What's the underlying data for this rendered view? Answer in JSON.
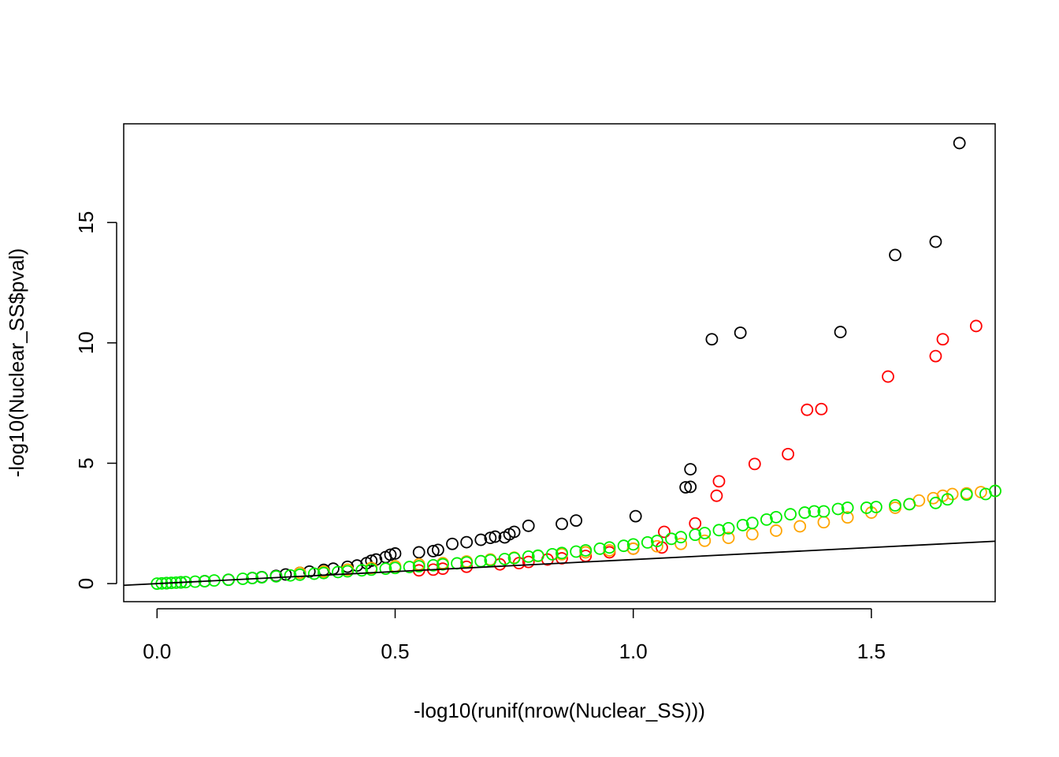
{
  "chart_data": {
    "type": "scatter",
    "title": "",
    "xlabel": "-log10(runif(nrow(Nuclear_SS)))",
    "ylabel": "-log10(Nuclear_SS$pval)",
    "xlim": [
      -0.07,
      1.76
    ],
    "ylim": [
      -0.75,
      19.1
    ],
    "x_ticks": [
      0.0,
      0.5,
      1.0,
      1.5
    ],
    "x_tick_labels": [
      "0.0",
      "0.5",
      "1.0",
      "1.5"
    ],
    "y_ticks": [
      0,
      5,
      10,
      15
    ],
    "y_tick_labels": [
      "0",
      "5",
      "10",
      "15"
    ],
    "grid": false,
    "reference_line": {
      "intercept": 0,
      "slope": 1,
      "color": "#000000"
    },
    "series": [
      {
        "color": "#000000",
        "points": [
          [
            0.02,
            0.02
          ],
          [
            0.05,
            0.05
          ],
          [
            0.1,
            0.1
          ],
          [
            0.15,
            0.16
          ],
          [
            0.2,
            0.23
          ],
          [
            0.22,
            0.27
          ],
          [
            0.25,
            0.32
          ],
          [
            0.27,
            0.38
          ],
          [
            0.3,
            0.45
          ],
          [
            0.32,
            0.5
          ],
          [
            0.35,
            0.57
          ],
          [
            0.37,
            0.62
          ],
          [
            0.4,
            0.7
          ],
          [
            0.42,
            0.75
          ],
          [
            0.44,
            0.85
          ],
          [
            0.45,
            0.95
          ],
          [
            0.46,
            1.0
          ],
          [
            0.48,
            1.1
          ],
          [
            0.49,
            1.2
          ],
          [
            0.5,
            1.25
          ],
          [
            0.55,
            1.3
          ],
          [
            0.58,
            1.35
          ],
          [
            0.59,
            1.4
          ],
          [
            0.62,
            1.65
          ],
          [
            0.65,
            1.72
          ],
          [
            0.68,
            1.82
          ],
          [
            0.7,
            1.9
          ],
          [
            0.71,
            1.95
          ],
          [
            0.73,
            1.92
          ],
          [
            0.74,
            2.05
          ],
          [
            0.75,
            2.15
          ],
          [
            0.78,
            2.4
          ],
          [
            0.85,
            2.48
          ],
          [
            0.88,
            2.62
          ],
          [
            1.005,
            2.8
          ],
          [
            1.11,
            4.0
          ],
          [
            1.12,
            4.02
          ],
          [
            1.12,
            4.75
          ],
          [
            1.165,
            10.15
          ],
          [
            1.225,
            10.42
          ],
          [
            1.435,
            10.45
          ],
          [
            1.55,
            13.65
          ],
          [
            1.635,
            14.2
          ],
          [
            1.685,
            18.3
          ]
        ]
      },
      {
        "color": "#ff0000",
        "points": [
          [
            0.55,
            0.55
          ],
          [
            0.58,
            0.58
          ],
          [
            0.6,
            0.62
          ],
          [
            0.65,
            0.7
          ],
          [
            0.72,
            0.8
          ],
          [
            0.76,
            0.85
          ],
          [
            0.78,
            0.9
          ],
          [
            0.82,
            1.0
          ],
          [
            0.85,
            1.05
          ],
          [
            0.9,
            1.15
          ],
          [
            0.95,
            1.3
          ],
          [
            1.0,
            1.45
          ],
          [
            1.06,
            1.5
          ],
          [
            1.065,
            2.15
          ],
          [
            1.13,
            2.5
          ],
          [
            1.175,
            3.65
          ],
          [
            1.18,
            4.25
          ],
          [
            1.255,
            4.97
          ],
          [
            1.325,
            5.38
          ],
          [
            1.365,
            7.22
          ],
          [
            1.395,
            7.25
          ],
          [
            1.535,
            8.6
          ],
          [
            1.635,
            9.45
          ],
          [
            1.65,
            10.15
          ],
          [
            1.72,
            10.7
          ]
        ]
      },
      {
        "color": "#ffa500",
        "points": [
          [
            0.3,
            0.45
          ],
          [
            0.35,
            0.5
          ],
          [
            0.4,
            0.58
          ],
          [
            0.45,
            0.65
          ],
          [
            0.5,
            0.72
          ],
          [
            0.55,
            0.8
          ],
          [
            0.6,
            0.85
          ],
          [
            0.65,
            0.92
          ],
          [
            0.7,
            1.0
          ],
          [
            0.75,
            1.08
          ],
          [
            0.8,
            1.15
          ],
          [
            0.85,
            1.22
          ],
          [
            0.9,
            1.3
          ],
          [
            0.95,
            1.38
          ],
          [
            1.0,
            1.45
          ],
          [
            1.05,
            1.55
          ],
          [
            1.1,
            1.65
          ],
          [
            1.15,
            1.78
          ],
          [
            1.2,
            1.9
          ],
          [
            1.25,
            2.05
          ],
          [
            1.3,
            2.2
          ],
          [
            1.35,
            2.38
          ],
          [
            1.4,
            2.55
          ],
          [
            1.45,
            2.75
          ],
          [
            1.5,
            2.95
          ],
          [
            1.55,
            3.15
          ],
          [
            1.58,
            3.3
          ],
          [
            1.6,
            3.45
          ],
          [
            1.63,
            3.55
          ],
          [
            1.65,
            3.65
          ],
          [
            1.67,
            3.72
          ],
          [
            1.7,
            3.75
          ],
          [
            1.73,
            3.8
          ],
          [
            1.76,
            3.85
          ]
        ]
      },
      {
        "color": "#00ee00",
        "points": [
          [
            0.0,
            0.0
          ],
          [
            0.01,
            0.01
          ],
          [
            0.02,
            0.02
          ],
          [
            0.03,
            0.03
          ],
          [
            0.04,
            0.04
          ],
          [
            0.05,
            0.05
          ],
          [
            0.06,
            0.06
          ],
          [
            0.08,
            0.08
          ],
          [
            0.1,
            0.1
          ],
          [
            0.12,
            0.13
          ],
          [
            0.15,
            0.16
          ],
          [
            0.18,
            0.2
          ],
          [
            0.2,
            0.23
          ],
          [
            0.22,
            0.26
          ],
          [
            0.25,
            0.3
          ],
          [
            0.28,
            0.34
          ],
          [
            0.3,
            0.37
          ],
          [
            0.33,
            0.41
          ],
          [
            0.35,
            0.44
          ],
          [
            0.38,
            0.48
          ],
          [
            0.4,
            0.51
          ],
          [
            0.43,
            0.55
          ],
          [
            0.45,
            0.58
          ],
          [
            0.48,
            0.62
          ],
          [
            0.5,
            0.65
          ],
          [
            0.53,
            0.69
          ],
          [
            0.55,
            0.72
          ],
          [
            0.58,
            0.76
          ],
          [
            0.6,
            0.8
          ],
          [
            0.63,
            0.84
          ],
          [
            0.65,
            0.88
          ],
          [
            0.68,
            0.93
          ],
          [
            0.7,
            0.97
          ],
          [
            0.73,
            1.02
          ],
          [
            0.75,
            1.06
          ],
          [
            0.78,
            1.12
          ],
          [
            0.8,
            1.16
          ],
          [
            0.83,
            1.22
          ],
          [
            0.85,
            1.27
          ],
          [
            0.88,
            1.33
          ],
          [
            0.9,
            1.38
          ],
          [
            0.93,
            1.45
          ],
          [
            0.95,
            1.5
          ],
          [
            0.98,
            1.57
          ],
          [
            1.0,
            1.63
          ],
          [
            1.03,
            1.71
          ],
          [
            1.05,
            1.77
          ],
          [
            1.08,
            1.86
          ],
          [
            1.1,
            1.93
          ],
          [
            1.13,
            2.03
          ],
          [
            1.15,
            2.1
          ],
          [
            1.18,
            2.22
          ],
          [
            1.2,
            2.3
          ],
          [
            1.23,
            2.43
          ],
          [
            1.25,
            2.52
          ],
          [
            1.28,
            2.66
          ],
          [
            1.3,
            2.76
          ],
          [
            1.33,
            2.88
          ],
          [
            1.36,
            2.95
          ],
          [
            1.38,
            3.0
          ],
          [
            1.4,
            3.0
          ],
          [
            1.43,
            3.1
          ],
          [
            1.45,
            3.15
          ],
          [
            1.49,
            3.15
          ],
          [
            1.51,
            3.18
          ],
          [
            1.55,
            3.25
          ],
          [
            1.58,
            3.3
          ],
          [
            1.635,
            3.35
          ],
          [
            1.66,
            3.5
          ],
          [
            1.7,
            3.7
          ],
          [
            1.74,
            3.72
          ],
          [
            1.76,
            3.85
          ]
        ]
      }
    ]
  }
}
